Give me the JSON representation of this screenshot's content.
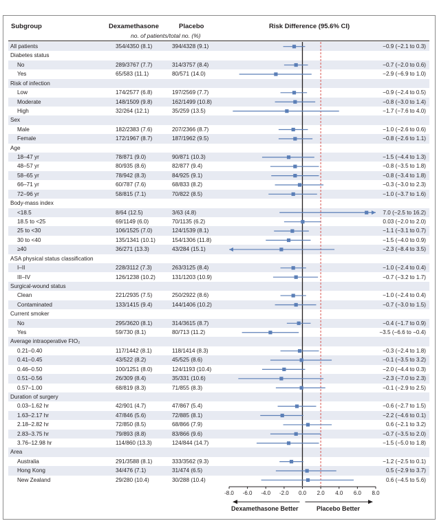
{
  "headers": {
    "subgroup": "Subgroup",
    "dexamethasone": "Dexamethasone",
    "placebo": "Placebo",
    "risk_difference": "Risk Difference (95.6% CI)",
    "counts_note": "no. of patients/total no. (%)"
  },
  "footer": {
    "left_label": "Dexamethasone Better",
    "right_label": "Placebo Better"
  },
  "colors": {
    "marker": "#5b7fb7",
    "axis": "#231f20",
    "reference_line": "#d9534f",
    "row_shade": "#e7eaf2"
  },
  "chart_data": {
    "type": "forest",
    "xlim": [
      -8.0,
      8.0
    ],
    "xticks": [
      "-8.0",
      "-6.0",
      "-4.0",
      "-2.0",
      "0.0",
      "2.0",
      "4.0",
      "6.0",
      "8.0"
    ],
    "reference_line_x": 2.0,
    "rows": [
      {
        "label": "All patients",
        "kind": "data",
        "dex": "354/4350 (8.1)",
        "placebo": "394/4328 (9.1)",
        "rd": -0.9,
        "lo": -2.1,
        "hi": 0.3,
        "ci": "−0.9 (−2.1 to 0.3)"
      },
      {
        "label": "Diabetes status",
        "kind": "group"
      },
      {
        "label": "No",
        "kind": "data",
        "dex": "289/3767 (7.7)",
        "placebo": "314/3757 (8.4)",
        "rd": -0.7,
        "lo": -2.0,
        "hi": 0.6,
        "ci": "−0.7 (−2.0 to 0.6)"
      },
      {
        "label": "Yes",
        "kind": "data",
        "dex": "65/583 (11.1)",
        "placebo": "80/571 (14.0)",
        "rd": -2.9,
        "lo": -6.9,
        "hi": 1.0,
        "ci": "−2.9 (−6.9 to 1.0)"
      },
      {
        "label": "Risk of infection",
        "kind": "group"
      },
      {
        "label": "Low",
        "kind": "data",
        "dex": "174/2577 (6.8)",
        "placebo": "197/2569 (7.7)",
        "rd": -0.9,
        "lo": -2.4,
        "hi": 0.5,
        "ci": "−0.9 (−2.4 to 0.5)"
      },
      {
        "label": "Moderate",
        "kind": "data",
        "dex": "148/1509 (9.8)",
        "placebo": "162/1499 (10.8)",
        "rd": -0.8,
        "lo": -3.0,
        "hi": 1.4,
        "ci": "−0.8 (−3.0 to 1.4)"
      },
      {
        "label": "High",
        "kind": "data",
        "dex": "32/264 (12.1)",
        "placebo": "35/259 (13.5)",
        "rd": -1.7,
        "lo": -7.6,
        "hi": 4.0,
        "ci": "−1.7 (−7.6 to 4.0)"
      },
      {
        "label": "Sex",
        "kind": "group"
      },
      {
        "label": "Male",
        "kind": "data",
        "dex": "182/2383 (7.6)",
        "placebo": "207/2366 (8.7)",
        "rd": -1.0,
        "lo": -2.6,
        "hi": 0.6,
        "ci": "−1.0 (−2.6 to 0.6)"
      },
      {
        "label": "Female",
        "kind": "data",
        "dex": "172/1967 (8.7)",
        "placebo": "187/1962 (9.5)",
        "rd": -0.8,
        "lo": -2.6,
        "hi": 1.1,
        "ci": "−0.8 (−2.6 to 1.1)"
      },
      {
        "label": "Age",
        "kind": "group"
      },
      {
        "label": "18–47 yr",
        "kind": "data",
        "dex": "78/871 (9.0)",
        "placebo": "90/871 (10.3)",
        "rd": -1.5,
        "lo": -4.4,
        "hi": 1.3,
        "ci": "−1.5 (−4.4 to 1.3)"
      },
      {
        "label": "48–57 yr",
        "kind": "data",
        "dex": "80/935 (8.6)",
        "placebo": "82/877 (9.4)",
        "rd": -0.8,
        "lo": -3.5,
        "hi": 1.8,
        "ci": "−0.8 (−3.5 to 1.8)"
      },
      {
        "label": "58–65 yr",
        "kind": "data",
        "dex": "78/942 (8.3)",
        "placebo": "84/925 (9.1)",
        "rd": -0.8,
        "lo": -3.4,
        "hi": 1.8,
        "ci": "−0.8 (−3.4 to 1.8)"
      },
      {
        "label": "66–71 yr",
        "kind": "data",
        "dex": "60/787 (7.6)",
        "placebo": "68/833 (8.2)",
        "rd": -0.3,
        "lo": -3.0,
        "hi": 2.3,
        "ci": "−0.3 (−3.0 to 2.3)"
      },
      {
        "label": "72–96 yr",
        "kind": "data",
        "dex": "58/815 (7.1)",
        "placebo": "70/822 (8.5)",
        "rd": -1.0,
        "lo": -3.7,
        "hi": 1.6,
        "ci": "−1.0 (−3.7 to 1.6)"
      },
      {
        "label": "Body-mass index",
        "kind": "group"
      },
      {
        "label": "<18.5",
        "kind": "data",
        "dex": "8/64 (12.5)",
        "placebo": "3/63 (4.8)",
        "rd": 7.0,
        "lo": -2.5,
        "hi": 16.2,
        "ci": "7.0 (−2.5 to 16.2)",
        "arrow": "right"
      },
      {
        "label": "18.5 to <25",
        "kind": "data",
        "dex": "69/1149 (6.0)",
        "placebo": "70/1135 (6.2)",
        "rd": 0.03,
        "lo": -2.0,
        "hi": 2.0,
        "ci": "0.03 (−2.0 to 2.0)"
      },
      {
        "label": "25 to <30",
        "kind": "data",
        "dex": "106/1525 (7.0)",
        "placebo": "124/1539 (8.1)",
        "rd": -1.1,
        "lo": -3.1,
        "hi": 0.7,
        "ci": "−1.1 (−3.1 to 0.7)"
      },
      {
        "label": "30 to <40",
        "kind": "data",
        "dex": "135/1341 (10.1)",
        "placebo": "154/1306 (11.8)",
        "rd": -1.5,
        "lo": -4.0,
        "hi": 0.9,
        "ci": "−1.5 (−4.0 to 0.9)"
      },
      {
        "label": "≥40",
        "kind": "data",
        "dex": "36/271 (13.3)",
        "placebo": "43/284 (15.1)",
        "rd": -2.3,
        "lo": -8.4,
        "hi": 3.5,
        "ci": "−2.3 (−8.4 to 3.5)",
        "arrow": "left"
      },
      {
        "label": "ASA physical status classification",
        "kind": "group"
      },
      {
        "label": "I–II",
        "kind": "data",
        "dex": "228/3112 (7.3)",
        "placebo": "263/3125 (8.4)",
        "rd": -1.0,
        "lo": -2.4,
        "hi": 0.4,
        "ci": "−1.0 (−2.4 to 0.4)"
      },
      {
        "label": "III–IV",
        "kind": "data",
        "dex": "126/1238 (10.2)",
        "placebo": "131/1203 (10.9)",
        "rd": -0.7,
        "lo": -3.2,
        "hi": 1.7,
        "ci": "−0.7 (−3.2 to 1.7)"
      },
      {
        "label": "Surgical-wound status",
        "kind": "group"
      },
      {
        "label": "Clean",
        "kind": "data",
        "dex": "221/2935 (7.5)",
        "placebo": "250/2922 (8.6)",
        "rd": -1.0,
        "lo": -2.4,
        "hi": 0.4,
        "ci": "−1.0 (−2.4 to 0.4)"
      },
      {
        "label": "Contaminated",
        "kind": "data",
        "dex": "133/1415 (9.4)",
        "placebo": "144/1406 (10.2)",
        "rd": -0.7,
        "lo": -3.0,
        "hi": 1.5,
        "ci": "−0.7 (−3.0 to 1.5)"
      },
      {
        "label": "Current smoker",
        "kind": "group"
      },
      {
        "label": "No",
        "kind": "data",
        "dex": "295/3620 (8.1)",
        "placebo": "314/3615 (8.7)",
        "rd": -0.4,
        "lo": -1.7,
        "hi": 0.9,
        "ci": "−0.4 (−1.7 to 0.9)"
      },
      {
        "label": "Yes",
        "kind": "data",
        "dex": "59/730 (8.1)",
        "placebo": "80/713 (11.2)",
        "rd": -3.5,
        "lo": -6.6,
        "hi": -0.4,
        "ci": "−3.5 (−6.6 to −0.4)"
      },
      {
        "label": "Average intraoperative FIO₂",
        "kind": "group"
      },
      {
        "label": "0.21–0.40",
        "kind": "data",
        "dex": "117/1442 (8.1)",
        "placebo": "118/1414 (8.3)",
        "rd": -0.3,
        "lo": -2.4,
        "hi": 1.8,
        "ci": "−0.3 (−2.4 to 1.8)"
      },
      {
        "label": "0.41–0.45",
        "kind": "data",
        "dex": "43/522 (8.2)",
        "placebo": "45/525 (8.6)",
        "rd": -0.1,
        "lo": -3.5,
        "hi": 3.2,
        "ci": "−0.1 (−3.5 to 3.2)"
      },
      {
        "label": "0.46–0.50",
        "kind": "data",
        "dex": "100/1251 (8.0)",
        "placebo": "124/1193 (10.4)",
        "rd": -2.0,
        "lo": -4.4,
        "hi": 0.3,
        "ci": "−2.0 (−4.4 to 0.3)"
      },
      {
        "label": "0.51–0.56",
        "kind": "data",
        "dex": "26/309 (8.4)",
        "placebo": "35/331 (10.6)",
        "rd": -2.3,
        "lo": -7.0,
        "hi": 2.3,
        "ci": "−2.3 (−7.0 to 2.3)"
      },
      {
        "label": "0.57–1.00",
        "kind": "data",
        "dex": "68/819 (8.3)",
        "placebo": "71/855 (8.3)",
        "rd": -0.1,
        "lo": -2.9,
        "hi": 2.5,
        "ci": "−0.1 (−2.9 to 2.5)"
      },
      {
        "label": "Duration of surgery",
        "kind": "group"
      },
      {
        "label": "0.03–1.62 hr",
        "kind": "data",
        "dex": "42/901 (4.7)",
        "placebo": "47/867 (5.4)",
        "rd": -0.6,
        "lo": -2.7,
        "hi": 1.5,
        "ci": "−0.6 (−2.7 to 1.5)"
      },
      {
        "label": "1.63–2.17 hr",
        "kind": "data",
        "dex": "47/846 (5.6)",
        "placebo": "72/885 (8.1)",
        "rd": -2.2,
        "lo": -4.6,
        "hi": 0.1,
        "ci": "−2.2 (−4.6 to 0.1)"
      },
      {
        "label": "2.18–2.82 hr",
        "kind": "data",
        "dex": "72/850 (8.5)",
        "placebo": "68/866 (7.9)",
        "rd": 0.6,
        "lo": -2.1,
        "hi": 3.2,
        "ci": "0.6 (−2.1 to 3.2)"
      },
      {
        "label": "2.83–3.75 hr",
        "kind": "data",
        "dex": "79/893 (8.8)",
        "placebo": "83/866 (9.6)",
        "rd": -0.7,
        "lo": -3.5,
        "hi": 2.0,
        "ci": "−0.7 (−3.5 to 2.0)"
      },
      {
        "label": "3.76–12.98 hr",
        "kind": "data",
        "dex": "114/860 (13.3)",
        "placebo": "124/844 (14.7)",
        "rd": -1.5,
        "lo": -5.0,
        "hi": 1.8,
        "ci": "−1.5 (−5.0 to 1.8)"
      },
      {
        "label": "Area",
        "kind": "group"
      },
      {
        "label": "Australia",
        "kind": "data",
        "dex": "291/3588 (8.1)",
        "placebo": "333/3562 (9.3)",
        "rd": -1.2,
        "lo": -2.5,
        "hi": 0.1,
        "ci": "−1.2 (−2.5 to 0.1)"
      },
      {
        "label": "Hong Kong",
        "kind": "data",
        "dex": "34/476 (7.1)",
        "placebo": "31/474 (6.5)",
        "rd": 0.5,
        "lo": -2.9,
        "hi": 3.7,
        "ci": "0.5 (−2.9 to 3.7)"
      },
      {
        "label": "New Zealand",
        "kind": "data",
        "dex": "29/280 (10.4)",
        "placebo": "30/288 (10.4)",
        "rd": 0.6,
        "lo": -4.5,
        "hi": 5.6,
        "ci": "0.6 (−4.5 to 5.6)"
      }
    ]
  }
}
